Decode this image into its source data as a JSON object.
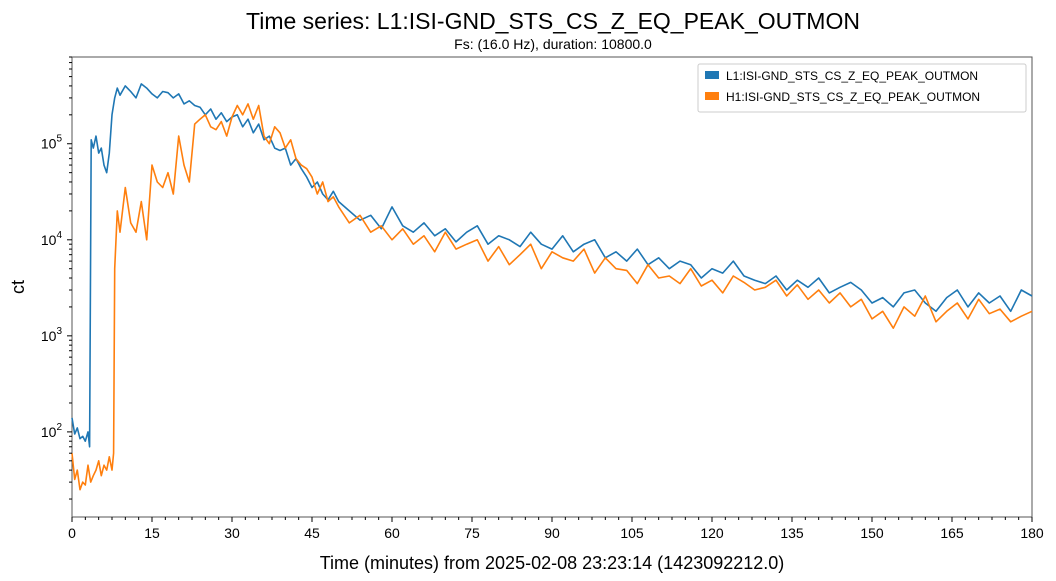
{
  "chart_data": {
    "type": "line",
    "title": "Time series: L1:ISI-GND_STS_CS_Z_EQ_PEAK_OUTMON",
    "subtitle": "Fs: (16.0 Hz), duration: 10800.0",
    "xlabel": "Time (minutes) from 2025-02-08 23:23:14 (1423092212.0)",
    "ylabel": "ct",
    "xlim": [
      0,
      180
    ],
    "ylim": [
      13,
      800000
    ],
    "yscale": "log",
    "grid": false,
    "legend_position": "top-right",
    "x_ticks": [
      "0",
      "15",
      "30",
      "45",
      "60",
      "75",
      "90",
      "105",
      "120",
      "135",
      "150",
      "165",
      "180"
    ],
    "y_ticks": [
      {
        "value": 100,
        "base": "10",
        "exp": "2"
      },
      {
        "value": 1000,
        "base": "10",
        "exp": "3"
      },
      {
        "value": 10000,
        "base": "10",
        "exp": "4"
      },
      {
        "value": 100000,
        "base": "10",
        "exp": "5"
      }
    ],
    "series": [
      {
        "name": "L1:ISI-GND_STS_CS_Z_EQ_PEAK_OUTMON",
        "color": "#1f77b4",
        "x": [
          0,
          0.5,
          1,
          1.5,
          2,
          2.5,
          3,
          3.3,
          3.6,
          4,
          4.5,
          5,
          5.5,
          6,
          6.5,
          7,
          7.5,
          8,
          8.5,
          9,
          10,
          11,
          12,
          13,
          14,
          15,
          16,
          17,
          18,
          19,
          20,
          21,
          22,
          23,
          24,
          25,
          26,
          27,
          28,
          29,
          30,
          31,
          32,
          33,
          34,
          35,
          36,
          37,
          38,
          39,
          40,
          41,
          42,
          43,
          44,
          45,
          46,
          47,
          48,
          49,
          50,
          52,
          54,
          56,
          58,
          60,
          62,
          64,
          66,
          68,
          70,
          72,
          74,
          76,
          78,
          80,
          82,
          84,
          86,
          88,
          90,
          92,
          94,
          96,
          98,
          100,
          102,
          104,
          106,
          108,
          110,
          112,
          114,
          116,
          118,
          120,
          122,
          124,
          126,
          128,
          130,
          132,
          134,
          136,
          138,
          140,
          142,
          144,
          146,
          148,
          150,
          152,
          154,
          156,
          158,
          160,
          162,
          164,
          166,
          168,
          170,
          172,
          174,
          176,
          178,
          180
        ],
        "y": [
          140,
          95,
          110,
          85,
          90,
          80,
          100,
          70,
          110000,
          90000,
          120000,
          80000,
          90000,
          60000,
          50000,
          80000,
          200000,
          300000,
          380000,
          320000,
          400000,
          350000,
          300000,
          420000,
          380000,
          330000,
          300000,
          350000,
          340000,
          300000,
          330000,
          260000,
          280000,
          250000,
          240000,
          200000,
          230000,
          180000,
          210000,
          170000,
          190000,
          200000,
          150000,
          180000,
          130000,
          160000,
          110000,
          120000,
          90000,
          85000,
          90000,
          60000,
          70000,
          55000,
          45000,
          35000,
          40000,
          30000,
          26000,
          32000,
          25000,
          20000,
          16000,
          18000,
          13000,
          22000,
          14000,
          12000,
          15000,
          11000,
          13000,
          9500,
          12000,
          14000,
          9000,
          11000,
          10000,
          8500,
          12000,
          9000,
          8000,
          11000,
          7500,
          9000,
          10000,
          6500,
          7500,
          6000,
          8000,
          5500,
          6500,
          5000,
          6000,
          5500,
          4000,
          5000,
          4500,
          6000,
          4200,
          3800,
          3500,
          4200,
          3000,
          3800,
          3200,
          4000,
          2800,
          3200,
          3600,
          3000,
          2200,
          2500,
          2000,
          2800,
          3000,
          2200,
          1800,
          2500,
          3000,
          2000,
          2800,
          2200,
          2600,
          1800,
          3000,
          2600
        ]
      },
      {
        "name": "H1:ISI-GND_STS_CS_Z_EQ_PEAK_OUTMON",
        "color": "#ff7f0e",
        "x": [
          0,
          0.5,
          1,
          1.5,
          2,
          2.5,
          3,
          3.5,
          4,
          4.5,
          5,
          5.5,
          6,
          6.5,
          7,
          7.5,
          7.8,
          8,
          8.5,
          9,
          10,
          11,
          12,
          13,
          14,
          15,
          16,
          17,
          18,
          19,
          20,
          21,
          22,
          23,
          24,
          25,
          26,
          27,
          28,
          29,
          30,
          31,
          32,
          33,
          34,
          35,
          36,
          37,
          38,
          39,
          40,
          41,
          42,
          43,
          44,
          45,
          46,
          47,
          48,
          49,
          50,
          52,
          54,
          56,
          58,
          60,
          62,
          64,
          66,
          68,
          70,
          72,
          74,
          76,
          78,
          80,
          82,
          84,
          86,
          88,
          90,
          92,
          94,
          96,
          98,
          100,
          102,
          104,
          106,
          108,
          110,
          112,
          114,
          116,
          118,
          120,
          122,
          124,
          126,
          128,
          130,
          132,
          134,
          136,
          138,
          140,
          142,
          144,
          146,
          148,
          150,
          152,
          154,
          156,
          158,
          160,
          162,
          164,
          166,
          168,
          170,
          172,
          174,
          176,
          178,
          180
        ],
        "y": [
          60,
          32,
          40,
          25,
          30,
          28,
          45,
          30,
          35,
          40,
          50,
          35,
          45,
          40,
          55,
          40,
          60,
          5000,
          20000,
          12000,
          35000,
          15000,
          12000,
          25000,
          10000,
          60000,
          40000,
          35000,
          50000,
          30000,
          120000,
          60000,
          40000,
          160000,
          180000,
          200000,
          150000,
          140000,
          170000,
          120000,
          190000,
          250000,
          200000,
          260000,
          180000,
          250000,
          120000,
          100000,
          150000,
          130000,
          90000,
          110000,
          70000,
          60000,
          55000,
          45000,
          30000,
          40000,
          25000,
          28000,
          22000,
          15000,
          18000,
          12000,
          14000,
          10000,
          13000,
          9000,
          11000,
          7500,
          12000,
          8000,
          9000,
          10000,
          6000,
          8500,
          5500,
          7000,
          9000,
          5000,
          7500,
          6500,
          6000,
          8000,
          4500,
          6500,
          5000,
          4800,
          3500,
          5500,
          4000,
          4200,
          3500,
          5000,
          3300,
          3800,
          2800,
          4200,
          3600,
          3000,
          3200,
          3800,
          2600,
          3400,
          2400,
          3000,
          2200,
          2800,
          2000,
          2400,
          1500,
          1800,
          1200,
          2000,
          1600,
          2600,
          1400,
          1800,
          2200,
          1500,
          2400,
          1700,
          1900,
          1400,
          1600,
          1800
        ]
      }
    ]
  }
}
